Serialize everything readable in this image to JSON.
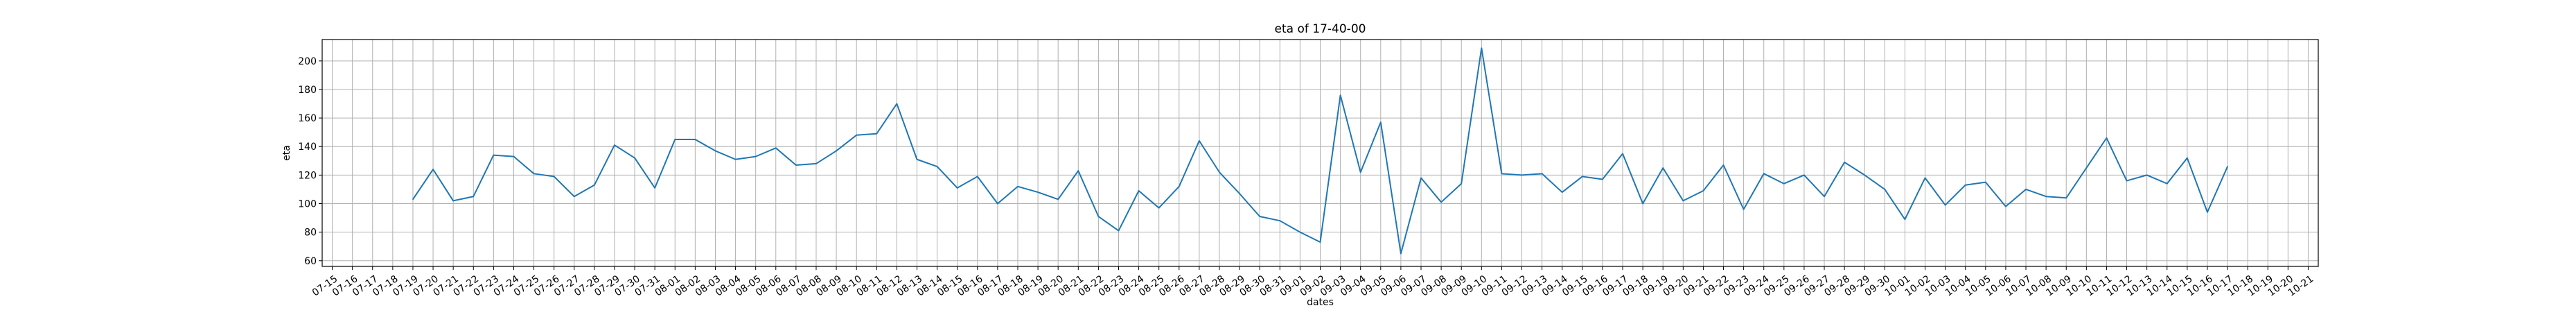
{
  "chart_data": {
    "type": "line",
    "title": "eta of 17-40-00",
    "xlabel": "dates",
    "ylabel": "eta",
    "grid": true,
    "ylim": [
      56,
      215
    ],
    "y_ticks": [
      60,
      80,
      100,
      120,
      140,
      160,
      180,
      200
    ],
    "x_ticks": [
      "07-15",
      "07-16",
      "07-17",
      "07-18",
      "07-19",
      "07-20",
      "07-21",
      "07-22",
      "07-23",
      "07-24",
      "07-25",
      "07-26",
      "07-27",
      "07-28",
      "07-29",
      "07-30",
      "07-31",
      "08-01",
      "08-02",
      "08-03",
      "08-04",
      "08-05",
      "08-06",
      "08-07",
      "08-08",
      "08-09",
      "08-10",
      "08-11",
      "08-12",
      "08-13",
      "08-14",
      "08-15",
      "08-16",
      "08-17",
      "08-18",
      "08-19",
      "08-20",
      "08-21",
      "08-22",
      "08-23",
      "08-24",
      "08-25",
      "08-26",
      "08-27",
      "08-28",
      "08-29",
      "08-30",
      "08-31",
      "09-01",
      "09-02",
      "09-03",
      "09-04",
      "09-05",
      "09-06",
      "09-07",
      "09-08",
      "09-09",
      "09-10",
      "09-11",
      "09-12",
      "09-13",
      "09-14",
      "09-15",
      "09-16",
      "09-17",
      "09-18",
      "09-19",
      "09-20",
      "09-21",
      "09-22",
      "09-23",
      "09-24",
      "09-25",
      "09-26",
      "09-27",
      "09-28",
      "09-29",
      "09-30",
      "10-01",
      "10-02",
      "10-03",
      "10-04",
      "10-05",
      "10-06",
      "10-07",
      "10-08",
      "10-09",
      "10-10",
      "10-11",
      "10-12",
      "10-13",
      "10-14",
      "10-15",
      "10-16",
      "10-17",
      "10-18",
      "10-19",
      "10-20",
      "10-21"
    ],
    "series": [
      {
        "color": "#1f77b4",
        "x": [
          "07-19",
          "07-20",
          "07-21",
          "07-22",
          "07-23",
          "07-24",
          "07-25",
          "07-26",
          "07-27",
          "07-28",
          "07-29",
          "07-30",
          "07-31",
          "08-01",
          "08-02",
          "08-03",
          "08-04",
          "08-05",
          "08-06",
          "08-07",
          "08-08",
          "08-09",
          "08-10",
          "08-11",
          "08-12",
          "08-13",
          "08-14",
          "08-15",
          "08-16",
          "08-17",
          "08-18",
          "08-19",
          "08-20",
          "08-21",
          "08-22",
          "08-23",
          "08-24",
          "08-25",
          "08-26",
          "08-27",
          "08-28",
          "08-29",
          "08-30",
          "08-31",
          "09-01",
          "09-02",
          "09-03",
          "09-04",
          "09-05",
          "09-06",
          "09-07",
          "09-08",
          "09-09",
          "09-10",
          "09-11",
          "09-12",
          "09-13",
          "09-14",
          "09-15",
          "09-16",
          "09-17",
          "09-18",
          "09-19",
          "09-20",
          "09-21",
          "09-22",
          "09-23",
          "09-24",
          "09-25",
          "09-26",
          "09-27",
          "09-28",
          "09-29",
          "09-30",
          "10-01",
          "10-02",
          "10-03",
          "10-04",
          "10-05",
          "10-06",
          "10-07",
          "10-08",
          "10-09",
          "10-10",
          "10-11",
          "10-12",
          "10-13",
          "10-14",
          "10-15",
          "10-16",
          "10-17"
        ],
        "y": [
          103,
          124,
          102,
          105,
          134,
          133,
          121,
          119,
          105,
          113,
          141,
          132,
          111,
          145,
          145,
          137,
          131,
          133,
          139,
          127,
          128,
          137,
          148,
          149,
          170,
          131,
          126,
          111,
          119,
          100,
          112,
          108,
          103,
          123,
          91,
          81,
          109,
          97,
          112,
          144,
          122,
          107,
          91,
          88,
          80,
          73,
          176,
          122,
          157,
          65,
          118,
          101,
          114,
          209,
          121,
          120,
          121,
          108,
          119,
          117,
          135,
          100,
          125,
          102,
          109,
          127,
          96,
          121,
          114,
          120,
          105,
          129,
          120,
          110,
          89,
          118,
          99,
          113,
          115,
          98,
          110,
          105,
          104,
          125,
          146,
          116,
          120,
          114,
          132,
          94,
          126
        ]
      }
    ]
  }
}
